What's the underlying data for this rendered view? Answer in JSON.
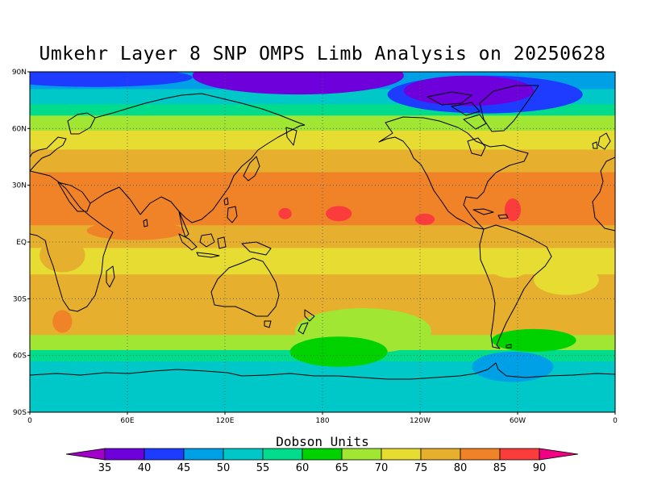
{
  "title": "Umkehr Layer 8 SNP OMPS Limb Analysis on 20250628",
  "map": {
    "projection": "cylindrical equidistant",
    "lon_range": [
      0,
      360
    ],
    "lat_range": [
      -90,
      90
    ],
    "gridlines": "dotted",
    "y_ticks": [
      {
        "lat": 90,
        "label": "90N"
      },
      {
        "lat": 60,
        "label": "60N"
      },
      {
        "lat": 30,
        "label": "30N"
      },
      {
        "lat": 0,
        "label": "EQ"
      },
      {
        "lat": -30,
        "label": "30S"
      },
      {
        "lat": -60,
        "label": "60S"
      },
      {
        "lat": -90,
        "label": "90S"
      }
    ],
    "x_ticks": [
      {
        "lon": 0,
        "label": "0"
      },
      {
        "lon": 60,
        "label": "60E"
      },
      {
        "lon": 120,
        "label": "120E"
      },
      {
        "lon": 180,
        "label": "180"
      },
      {
        "lon": 240,
        "label": "120W"
      },
      {
        "lon": 300,
        "label": "60W"
      },
      {
        "lon": 360,
        "label": "0"
      }
    ],
    "bands": [
      {
        "lat_top": 90,
        "lat_bottom": 80,
        "value": 45
      },
      {
        "lat_top": 80,
        "lat_bottom": 72,
        "value": 50
      },
      {
        "lat_top": 72,
        "lat_bottom": 66,
        "value": 55
      },
      {
        "lat_top": 66,
        "lat_bottom": 58,
        "value": 65
      },
      {
        "lat_top": 58,
        "lat_bottom": 48,
        "value": 70
      },
      {
        "lat_top": 48,
        "lat_bottom": 36,
        "value": 75
      },
      {
        "lat_top": 36,
        "lat_bottom": 8,
        "value": 80
      },
      {
        "lat_top": 8,
        "lat_bottom": -4,
        "value": 75
      },
      {
        "lat_top": -4,
        "lat_bottom": -18,
        "value": 70
      },
      {
        "lat_top": -18,
        "lat_bottom": -50,
        "value": 75
      },
      {
        "lat_top": -50,
        "lat_bottom": -58,
        "value": 65
      },
      {
        "lat_top": -58,
        "lat_bottom": -64,
        "value": 55
      },
      {
        "lat_top": -64,
        "lat_bottom": -90,
        "value": 50
      }
    ],
    "blobs": [
      {
        "lon": 165,
        "lat": 88,
        "rlon": 65,
        "rlat": 10,
        "value": 35
      },
      {
        "lon": 40,
        "lat": 87,
        "rlon": 60,
        "rlat": 5,
        "value": 40
      },
      {
        "lon": 280,
        "lat": 78,
        "rlon": 60,
        "rlat": 10,
        "value": 40
      },
      {
        "lon": 270,
        "lat": 80,
        "rlon": 40,
        "rlat": 8,
        "value": 35
      },
      {
        "lon": 205,
        "lat": -47,
        "rlon": 42,
        "rlat": 12,
        "value": 65
      },
      {
        "lon": 190,
        "lat": -58,
        "rlon": 30,
        "rlat": 8,
        "value": 60
      },
      {
        "lon": 297,
        "lat": -66,
        "rlon": 25,
        "rlat": 8,
        "value": 45
      },
      {
        "lon": 310,
        "lat": -52,
        "rlon": 26,
        "rlat": 6,
        "value": 60
      },
      {
        "lon": 65,
        "lat": 6,
        "rlon": 30,
        "rlat": 5,
        "value": 80
      },
      {
        "lon": 20,
        "lat": -7,
        "rlon": 14,
        "rlat": 9,
        "value": 75
      },
      {
        "lon": 295,
        "lat": -13,
        "rlon": 12,
        "rlat": 6,
        "value": 70
      },
      {
        "lon": 330,
        "lat": -20,
        "rlon": 20,
        "rlat": 8,
        "value": 70
      },
      {
        "lon": 157,
        "lat": 15,
        "rlon": 4,
        "rlat": 3,
        "value": 85
      },
      {
        "lon": 190,
        "lat": 15,
        "rlon": 8,
        "rlat": 4,
        "value": 85
      },
      {
        "lon": 243,
        "lat": 12,
        "rlon": 6,
        "rlat": 3,
        "value": 85
      },
      {
        "lon": 297,
        "lat": 17,
        "rlon": 5,
        "rlat": 6,
        "value": 85
      },
      {
        "lon": 20,
        "lat": -42,
        "rlon": 6,
        "rlat": 6,
        "value": 80
      },
      {
        "lon": 350,
        "lat": 30,
        "rlon": 10,
        "rlat": 4,
        "value": 80
      }
    ]
  },
  "colorbar": {
    "title": "Dobson Units",
    "levels": [
      "35",
      "40",
      "45",
      "50",
      "55",
      "60",
      "65",
      "70",
      "75",
      "80",
      "85",
      "90"
    ],
    "colors": [
      "#a000c8",
      "#6e00dc",
      "#1e3cff",
      "#00a0e6",
      "#00c8c8",
      "#00dc8c",
      "#00d200",
      "#a0e632",
      "#e6dc32",
      "#e6af2d",
      "#f08228",
      "#fa3c3c",
      "#f00082"
    ]
  }
}
